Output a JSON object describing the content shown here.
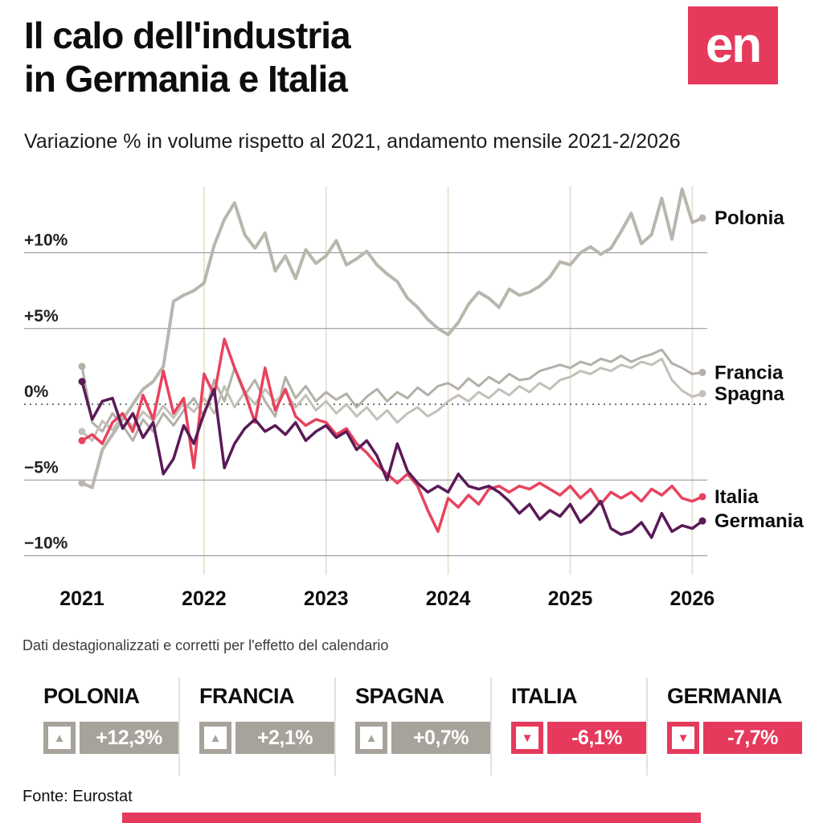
{
  "header": {
    "title_line1": "Il calo dell'industria",
    "title_line2": "in Germania e Italia",
    "subtitle": "Variazione % in volume rispetto al 2021, andamento mensile 2021-2/2026",
    "logo_text": "en"
  },
  "colors": {
    "accent_red": "#e63a5c",
    "badge_gray": "#a7a39b",
    "grid_line": "#8f8f8f",
    "zero_line": "#444444",
    "year_line": "#e9e3d3"
  },
  "chart_data": {
    "type": "line",
    "title": "Il calo dell'industria in Germania e Italia",
    "subtitle": "Variazione % in volume rispetto al 2021, andamento mensile 2021-2/2026",
    "x_tick_labels": [
      "2021",
      "2022",
      "2023",
      "2024",
      "2025",
      "2026"
    ],
    "year_tick_indices": [
      0,
      12,
      24,
      36,
      48,
      60
    ],
    "y_ticks": [
      10,
      5,
      0,
      -5,
      -10
    ],
    "y_tick_labels": [
      "+10%",
      "+5%",
      "0%",
      "−5%",
      "−10%"
    ],
    "ylim": [
      -12,
      15.5
    ],
    "grid": "horizontal solid at ±5 and ±10, dashed baseline at 0, vertical beige lines at year starts",
    "legend_position": "right-end-labels",
    "series": [
      {
        "id": "polonia",
        "name": "Polonia",
        "color": "#b9b6ae",
        "width": 4,
        "end_value": "+12,3%",
        "values": [
          -5.2,
          -5.5,
          -3.0,
          -2.0,
          -1.0,
          0,
          1.0,
          1.5,
          2.5,
          6.8,
          7.2,
          7.5,
          8.0,
          10.5,
          12.2,
          13.3,
          11.2,
          10.3,
          11.3,
          8.8,
          9.8,
          8.3,
          10.2,
          9.3,
          9.8,
          10.8,
          9.2,
          9.6,
          10.1,
          9.2,
          8.6,
          8.1,
          7.0,
          6.4,
          5.6,
          5.0,
          4.6,
          5.4,
          6.6,
          7.4,
          7.0,
          6.4,
          7.6,
          7.2,
          7.4,
          7.8,
          8.4,
          9.4,
          9.2,
          10.0,
          10.4,
          9.9,
          10.3,
          11.4,
          12.6,
          10.6,
          11.2,
          13.6,
          10.9,
          14.2,
          12.0,
          12.3
        ]
      },
      {
        "id": "francia",
        "name": "Francia",
        "color": "#b3b0a8",
        "width": 3,
        "end_value": "+2,1%",
        "values": [
          2.5,
          -1.2,
          -1.8,
          -0.6,
          -1.4,
          -2.4,
          -1.0,
          -1.8,
          -0.6,
          -1.4,
          -0.4,
          0.4,
          -0.8,
          1.6,
          0.2,
          2.4,
          0.6,
          1.6,
          0.2,
          -0.8,
          1.8,
          0.4,
          1.2,
          0.2,
          0.8,
          0.3,
          0.7,
          -0.2,
          0.5,
          1.0,
          0.2,
          0.8,
          0.4,
          1.1,
          0.6,
          1.2,
          1.4,
          1.0,
          1.7,
          1.2,
          1.8,
          1.4,
          2.0,
          1.6,
          1.7,
          2.2,
          2.4,
          2.6,
          2.4,
          2.8,
          2.6,
          3.0,
          2.8,
          3.2,
          2.8,
          3.1,
          3.3,
          3.6,
          2.7,
          2.4,
          2.0,
          2.1
        ]
      },
      {
        "id": "spagna",
        "name": "Spagna",
        "color": "#c3c0b8",
        "width": 3,
        "end_value": "+0,7%",
        "values": [
          -1.8,
          -2.4,
          -1.1,
          -1.7,
          -0.7,
          -1.5,
          -0.5,
          -1.1,
          -0.1,
          -0.9,
          0.1,
          -0.5,
          0.4,
          -0.6,
          1.2,
          -0.2,
          0.8,
          0,
          1.0,
          0.2,
          0.8,
          -0.2,
          0.6,
          -0.4,
          0.2,
          -0.6,
          0,
          -0.8,
          -0.2,
          -1.0,
          -0.4,
          -1.2,
          -0.6,
          -0.2,
          -0.8,
          -0.4,
          0.2,
          0.6,
          0.2,
          0.8,
          0.4,
          1.0,
          0.6,
          1.2,
          0.8,
          1.4,
          1.0,
          1.6,
          1.8,
          2.2,
          2.0,
          2.4,
          2.2,
          2.6,
          2.4,
          2.8,
          2.6,
          3.0,
          1.6,
          0.9,
          0.5,
          0.7
        ]
      },
      {
        "id": "italia",
        "name": "Italia",
        "color": "#e8435e",
        "width": 3.5,
        "end_value": "-6,1%",
        "values": [
          -2.4,
          -2.0,
          -2.6,
          -1.2,
          -0.6,
          -1.8,
          0.6,
          -1.0,
          2.2,
          -0.6,
          0.4,
          -4.2,
          2.0,
          0.6,
          4.3,
          2.4,
          0.8,
          -1.2,
          2.4,
          -0.4,
          1.0,
          -0.8,
          -1.4,
          -1.0,
          -1.2,
          -2.0,
          -1.6,
          -2.6,
          -3.2,
          -4.0,
          -4.6,
          -5.2,
          -4.6,
          -5.4,
          -7.0,
          -8.4,
          -6.2,
          -6.8,
          -6.0,
          -6.6,
          -5.6,
          -5.4,
          -5.8,
          -5.4,
          -5.6,
          -5.2,
          -5.6,
          -6.0,
          -5.4,
          -6.2,
          -5.6,
          -6.6,
          -5.8,
          -6.2,
          -5.8,
          -6.4,
          -5.6,
          -6.0,
          -5.4,
          -6.2,
          -6.4,
          -6.1
        ]
      },
      {
        "id": "germania",
        "name": "Germania",
        "color": "#5a1a57",
        "width": 3.5,
        "end_value": "-7,7%",
        "values": [
          1.5,
          -1.0,
          0.2,
          0.4,
          -1.6,
          -0.6,
          -2.2,
          -1.2,
          -4.6,
          -3.6,
          -1.4,
          -2.6,
          -0.6,
          1.0,
          -4.2,
          -2.6,
          -1.6,
          -1.0,
          -1.8,
          -1.4,
          -2.0,
          -1.2,
          -2.4,
          -1.8,
          -1.4,
          -2.2,
          -1.8,
          -3.0,
          -2.4,
          -3.4,
          -5.0,
          -2.6,
          -4.4,
          -5.2,
          -5.8,
          -5.4,
          -5.8,
          -4.6,
          -5.4,
          -5.6,
          -5.4,
          -5.8,
          -6.4,
          -7.2,
          -6.6,
          -7.6,
          -7.0,
          -7.4,
          -6.6,
          -7.8,
          -7.2,
          -6.4,
          -8.2,
          -8.6,
          -8.4,
          -7.8,
          -8.8,
          -7.2,
          -8.4,
          -8.0,
          -8.2,
          -7.7
        ]
      }
    ]
  },
  "note": "Dati destagionalizzati e corretti per l'effetto del calendario",
  "stats": [
    {
      "label": "POLONIA",
      "value": "+12,3%",
      "arrow": "▲",
      "direction": "up",
      "tone": "gray"
    },
    {
      "label": "FRANCIA",
      "value": "+2,1%",
      "arrow": "▲",
      "direction": "up",
      "tone": "gray"
    },
    {
      "label": "SPAGNA",
      "value": "+0,7%",
      "arrow": "▲",
      "direction": "up",
      "tone": "gray"
    },
    {
      "label": "ITALIA",
      "value": "-6,1%",
      "arrow": "▼",
      "direction": "down",
      "tone": "red"
    },
    {
      "label": "GERMANIA",
      "value": "-7,7%",
      "arrow": "▼",
      "direction": "down",
      "tone": "red"
    }
  ],
  "footer": {
    "source": "Fonte: Eurostat"
  }
}
